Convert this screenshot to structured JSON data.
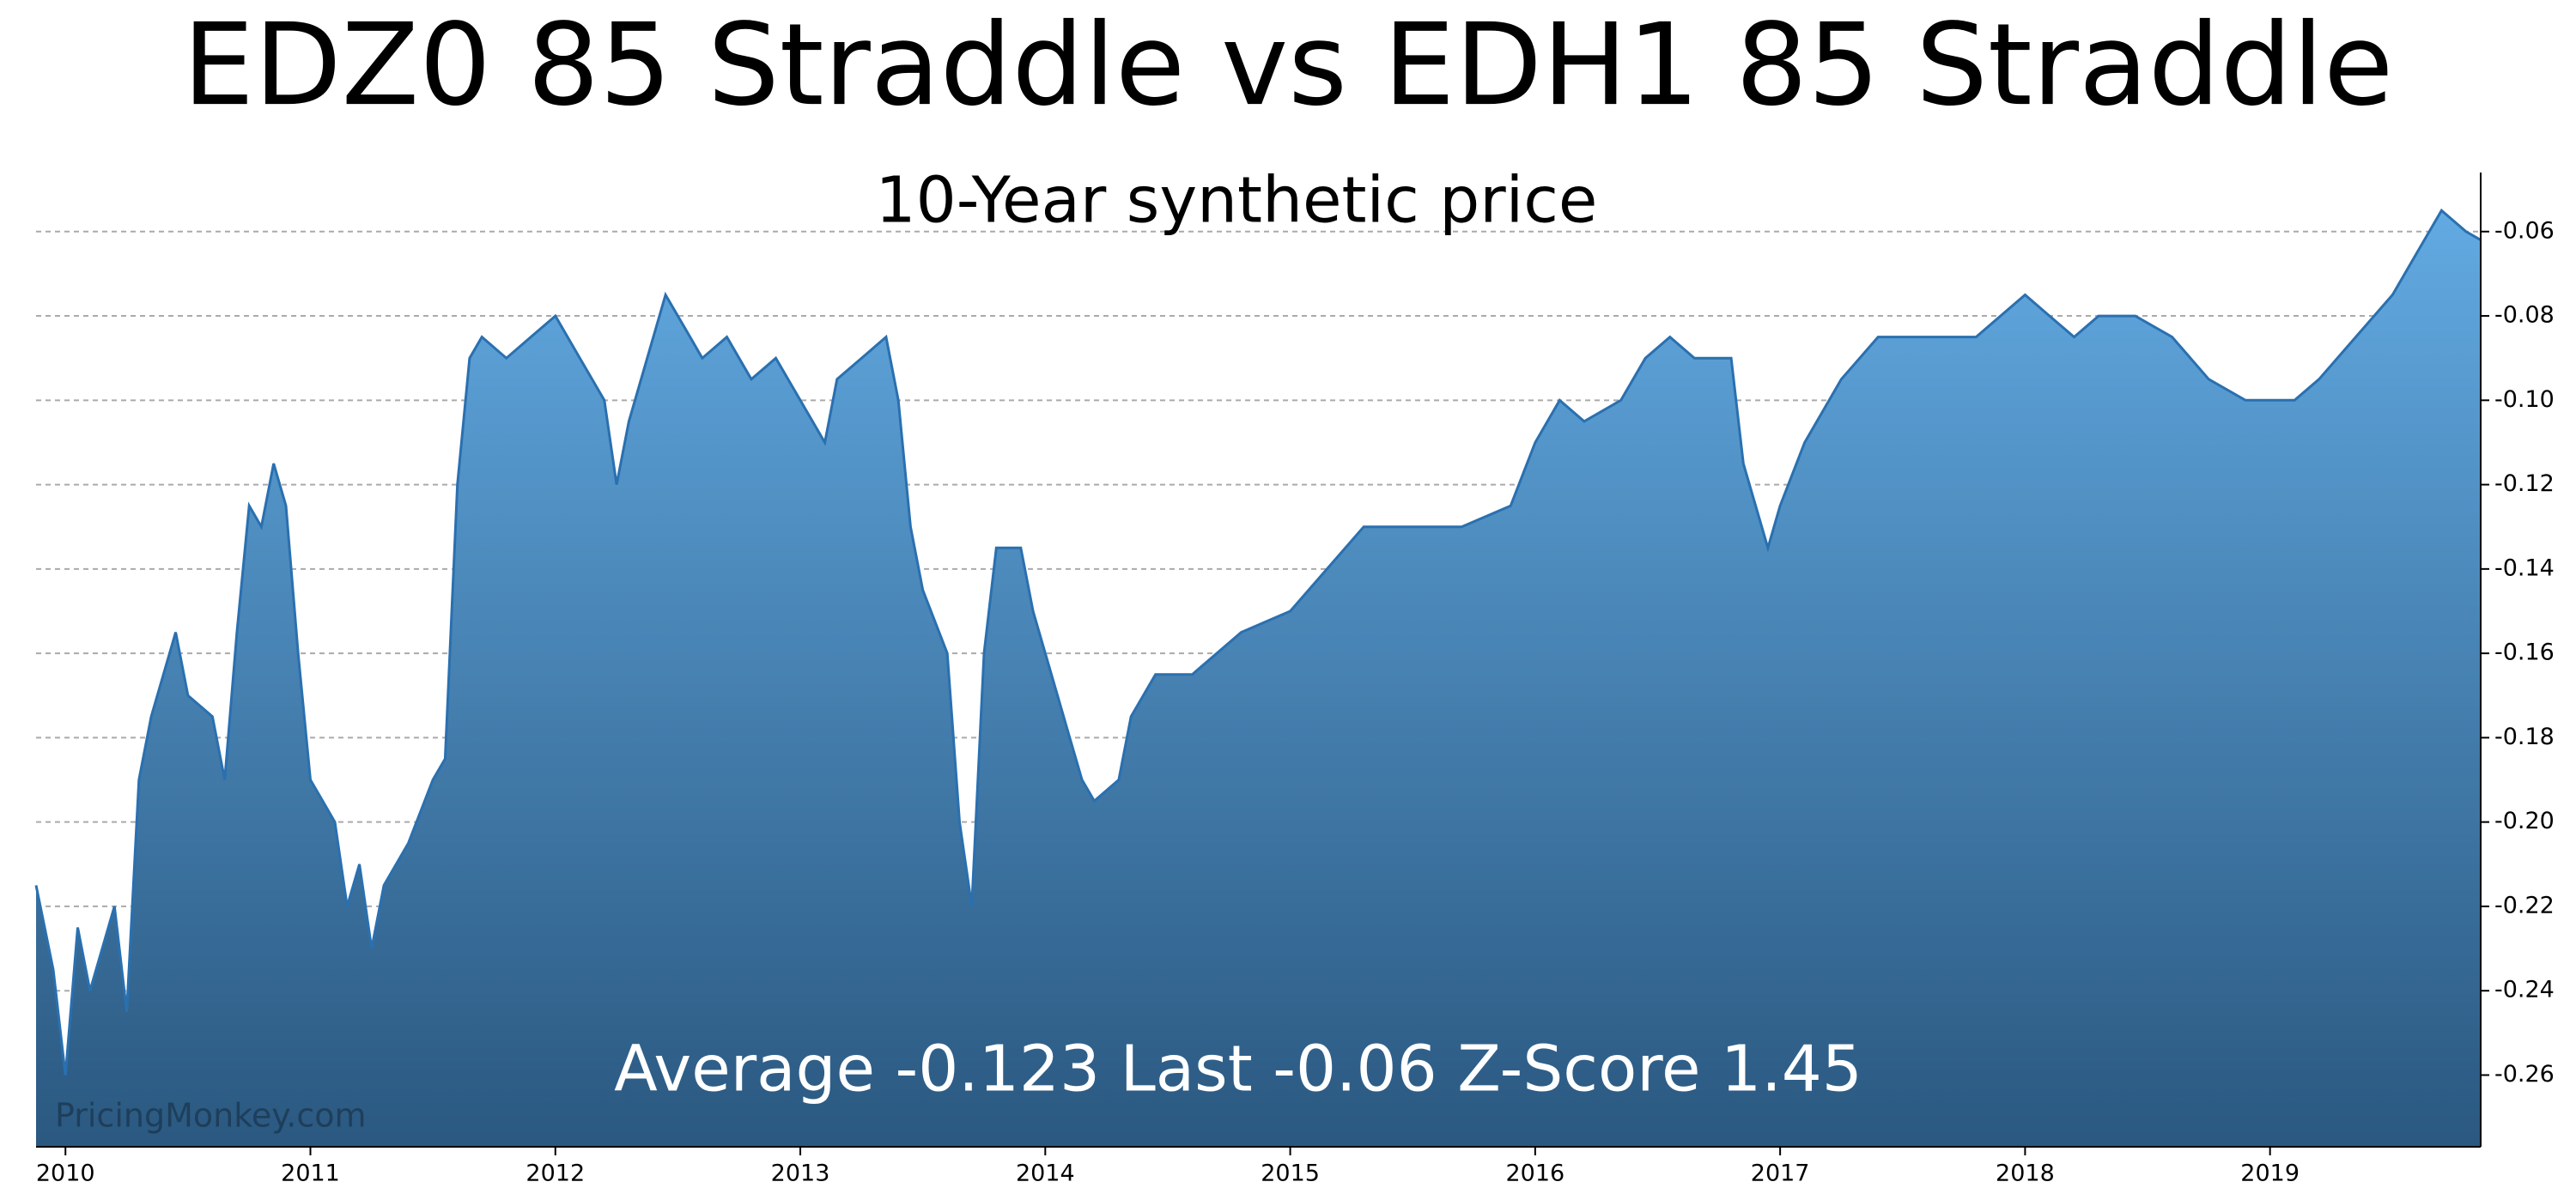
{
  "chart_data": {
    "type": "area",
    "title": "EDZ0 85 Straddle vs EDH1 85 Straddle",
    "subtitle": "10-Year synthetic price",
    "annotation": "Average -0.123 Last -0.06 Z-Score 1.45",
    "watermark": "PricingMonkey.com",
    "color": "#2a70b0",
    "grid": true,
    "y_axis_side": "right",
    "xlim": [
      2009.88,
      2019.86
    ],
    "xticks": [
      2010,
      2011,
      2012,
      2013,
      2014,
      2015,
      2016,
      2017,
      2018,
      2019
    ],
    "ylim": [
      -0.277,
      -0.046
    ],
    "yticks": [
      -0.26,
      -0.24,
      -0.22,
      {
        "value": -0.2,
        "label": "-0.20"
      },
      -0.18,
      -0.16,
      -0.14,
      -0.12,
      {
        "value": -0.1,
        "label": "-0.10"
      },
      -0.08,
      -0.06
    ],
    "x": [
      2009.88,
      2009.95,
      2010.0,
      2010.05,
      2010.1,
      2010.2,
      2010.25,
      2010.3,
      2010.35,
      2010.45,
      2010.5,
      2010.6,
      2010.65,
      2010.7,
      2010.75,
      2010.8,
      2010.85,
      2010.9,
      2010.95,
      2011.0,
      2011.05,
      2011.1,
      2011.15,
      2011.2,
      2011.25,
      2011.3,
      2011.4,
      2011.5,
      2011.55,
      2011.6,
      2011.65,
      2011.7,
      2011.8,
      2011.9,
      2012.0,
      2012.1,
      2012.2,
      2012.25,
      2012.3,
      2012.4,
      2012.45,
      2012.55,
      2012.6,
      2012.7,
      2012.8,
      2012.9,
      2013.0,
      2013.1,
      2013.15,
      2013.25,
      2013.35,
      2013.4,
      2013.45,
      2013.5,
      2013.6,
      2013.65,
      2013.7,
      2013.75,
      2013.8,
      2013.9,
      2013.95,
      2014.05,
      2014.1,
      2014.15,
      2014.2,
      2014.3,
      2014.35,
      2014.45,
      2014.6,
      2014.8,
      2015.0,
      2015.15,
      2015.3,
      2015.5,
      2015.7,
      2015.9,
      2016.0,
      2016.1,
      2016.2,
      2016.35,
      2016.45,
      2016.55,
      2016.65,
      2016.8,
      2016.85,
      2016.95,
      2017.0,
      2017.1,
      2017.25,
      2017.4,
      2017.6,
      2017.8,
      2018.0,
      2018.1,
      2018.2,
      2018.3,
      2018.45,
      2018.6,
      2018.75,
      2018.9,
      2019.0,
      2019.1,
      2019.2,
      2019.35,
      2019.5,
      2019.6,
      2019.7,
      2019.8,
      2019.86
    ],
    "values": [
      -0.215,
      -0.235,
      -0.26,
      -0.225,
      -0.24,
      -0.22,
      -0.245,
      -0.19,
      -0.175,
      -0.155,
      -0.17,
      -0.175,
      -0.19,
      -0.155,
      -0.125,
      -0.13,
      -0.115,
      -0.125,
      -0.16,
      -0.19,
      -0.195,
      -0.2,
      -0.22,
      -0.21,
      -0.23,
      -0.215,
      -0.205,
      -0.19,
      -0.185,
      -0.12,
      -0.09,
      -0.085,
      -0.09,
      -0.085,
      -0.08,
      -0.09,
      -0.1,
      -0.12,
      -0.105,
      -0.085,
      -0.075,
      -0.085,
      -0.09,
      -0.085,
      -0.095,
      -0.09,
      -0.1,
      -0.11,
      -0.095,
      -0.09,
      -0.085,
      -0.1,
      -0.13,
      -0.145,
      -0.16,
      -0.2,
      -0.22,
      -0.16,
      -0.135,
      -0.135,
      -0.15,
      -0.17,
      -0.18,
      -0.19,
      -0.195,
      -0.19,
      -0.175,
      -0.165,
      -0.165,
      -0.155,
      -0.15,
      -0.14,
      -0.13,
      -0.13,
      -0.13,
      -0.125,
      -0.11,
      -0.1,
      -0.105,
      -0.1,
      -0.09,
      -0.085,
      -0.09,
      -0.09,
      -0.115,
      -0.135,
      -0.125,
      -0.11,
      -0.095,
      -0.085,
      -0.085,
      -0.085,
      -0.075,
      -0.08,
      -0.085,
      -0.08,
      -0.08,
      -0.085,
      -0.095,
      -0.1,
      -0.1,
      -0.1,
      -0.095,
      -0.085,
      -0.075,
      -0.065,
      -0.055,
      -0.06,
      -0.062
    ]
  }
}
